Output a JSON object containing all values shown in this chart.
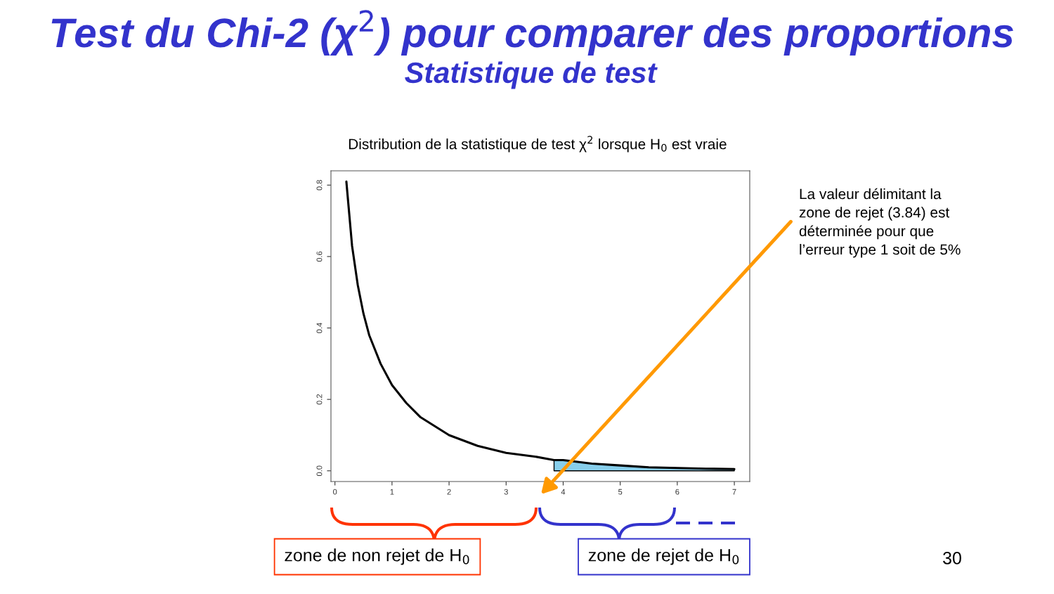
{
  "chart_data": {
    "type": "line",
    "title": "Test du Chi-2 (χ$^{2}$) pour comparer des proportions",
    "subtitle": "Statistique de test",
    "annotations": [
      "Distribution de la statistique de test χ$^{2}$ lorsque H$_{0}$ est vraie",
      "La valeur délimitant la\nzone de rejet (3.84) est\ndéterminée pour que\nl’erreur type 1 soit de 5%",
      "zone de non rejet de H$_{0}$",
      "zone de rejet de H$_{0}$",
      "30"
    ],
    "series": [
      {
        "color": "#000000",
        "x": [
          0.2,
          0.3,
          0.4,
          0.5,
          0.6,
          0.8,
          1,
          1.25,
          1.5,
          2,
          2.5,
          3,
          3.5,
          3.84,
          4,
          4.5,
          5,
          5.5,
          6,
          6.5,
          7
        ],
        "values": [
          0.81,
          0.63,
          0.52,
          0.44,
          0.38,
          0.3,
          0.24,
          0.19,
          0.15,
          0.1,
          0.07,
          0.05,
          0.04,
          0.03,
          0.03,
          0.02,
          0.015,
          0.01,
          0.008,
          0.006,
          0.005
        ]
      },
      {
        "type": "area",
        "color": "#87ceeb",
        "x": [
          3.84,
          4,
          4.5,
          5,
          5.5,
          6,
          6.5,
          7
        ],
        "values": [
          0.03,
          0.03,
          0.02,
          0.015,
          0.01,
          0.008,
          0.006,
          0.005
        ]
      }
    ],
    "xlim": [
      -0.07,
      7.27
    ],
    "ylim": [
      -0.03,
      0.84
    ],
    "xticks": [
      0,
      1,
      2,
      3,
      4,
      5,
      6,
      7
    ],
    "yticks": [
      {
        "value": 0,
        "label": "0.0"
      },
      {
        "value": 0.2,
        "label": "0.2"
      },
      {
        "value": 0.4,
        "label": "0.4"
      },
      {
        "value": 0.6,
        "label": "0.6"
      },
      {
        "value": 0.8,
        "label": "0.8"
      }
    ]
  }
}
